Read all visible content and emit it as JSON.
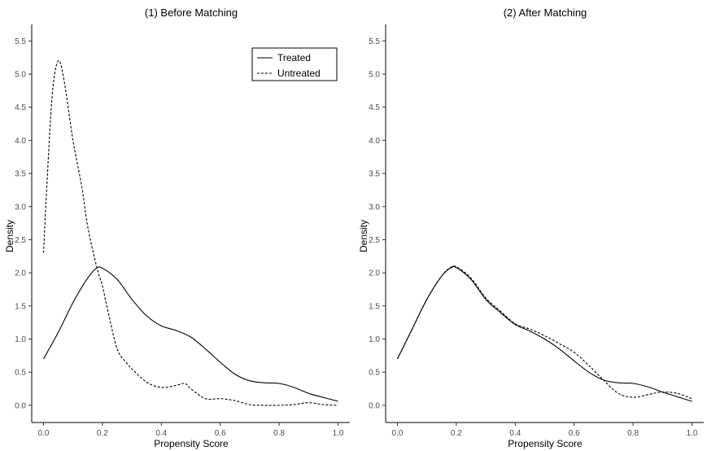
{
  "chart_data": [
    {
      "type": "line",
      "title": "(1) Before Matching",
      "xlabel": "Propensity Score",
      "ylabel": "Density",
      "xlim": [
        -0.04,
        1.04
      ],
      "ylim": [
        -0.26,
        5.75
      ],
      "xticks": [
        "0.0",
        "0.2",
        "0.4",
        "0.6",
        "0.8",
        "1.0"
      ],
      "yticks": [
        "0.0",
        "0.5",
        "1.0",
        "1.5",
        "2.0",
        "2.5",
        "3.0",
        "3.5",
        "4.0",
        "4.5",
        "5.0",
        "5.5"
      ],
      "grid": false,
      "legend": {
        "position": "top-right",
        "entries": [
          {
            "name": "Treated",
            "style": "solid"
          },
          {
            "name": "Untreated",
            "style": "dashed"
          }
        ]
      },
      "series": [
        {
          "name": "Treated",
          "style": "solid",
          "color": "#000000",
          "x": [
            0.0,
            0.05,
            0.1,
            0.15,
            0.18,
            0.2,
            0.25,
            0.3,
            0.35,
            0.4,
            0.45,
            0.5,
            0.55,
            0.6,
            0.65,
            0.7,
            0.75,
            0.8,
            0.85,
            0.9,
            0.95,
            1.0
          ],
          "y": [
            0.7,
            1.1,
            1.55,
            1.92,
            2.07,
            2.07,
            1.9,
            1.6,
            1.35,
            1.2,
            1.13,
            1.03,
            0.85,
            0.65,
            0.47,
            0.37,
            0.34,
            0.33,
            0.27,
            0.18,
            0.12,
            0.06
          ]
        },
        {
          "name": "Untreated",
          "style": "dashed",
          "color": "#000000",
          "x": [
            0.0,
            0.01,
            0.03,
            0.05,
            0.07,
            0.1,
            0.13,
            0.15,
            0.18,
            0.2,
            0.22,
            0.25,
            0.28,
            0.3,
            0.35,
            0.4,
            0.45,
            0.48,
            0.5,
            0.55,
            0.6,
            0.65,
            0.7,
            0.75,
            0.8,
            0.85,
            0.9,
            0.95,
            1.0
          ],
          "y": [
            2.3,
            3.2,
            4.7,
            5.2,
            4.9,
            4.0,
            3.3,
            2.7,
            2.1,
            1.8,
            1.4,
            0.85,
            0.65,
            0.55,
            0.35,
            0.27,
            0.3,
            0.33,
            0.25,
            0.1,
            0.1,
            0.07,
            0.01,
            0.0,
            0.0,
            0.01,
            0.04,
            0.01,
            0.0
          ]
        }
      ]
    },
    {
      "type": "line",
      "title": "(2) After Matching",
      "xlabel": "Propensity Score",
      "ylabel": "Density",
      "xlim": [
        -0.04,
        1.04
      ],
      "ylim": [
        -0.26,
        5.75
      ],
      "xticks": [
        "0.0",
        "0.2",
        "0.4",
        "0.6",
        "0.8",
        "1.0"
      ],
      "yticks": [
        "0.0",
        "0.5",
        "1.0",
        "1.5",
        "2.0",
        "2.5",
        "3.0",
        "3.5",
        "4.0",
        "4.5",
        "5.0",
        "5.5"
      ],
      "grid": false,
      "series": [
        {
          "name": "Treated",
          "style": "solid",
          "color": "#000000",
          "x": [
            0.0,
            0.05,
            0.1,
            0.15,
            0.18,
            0.2,
            0.25,
            0.3,
            0.35,
            0.4,
            0.45,
            0.5,
            0.55,
            0.6,
            0.65,
            0.7,
            0.75,
            0.8,
            0.85,
            0.9,
            0.95,
            1.0
          ],
          "y": [
            0.7,
            1.15,
            1.6,
            1.95,
            2.07,
            2.08,
            1.9,
            1.6,
            1.4,
            1.22,
            1.12,
            1.0,
            0.85,
            0.67,
            0.5,
            0.38,
            0.34,
            0.33,
            0.28,
            0.2,
            0.13,
            0.06
          ]
        },
        {
          "name": "Untreated",
          "style": "dashed",
          "color": "#000000",
          "x": [
            0.0,
            0.05,
            0.1,
            0.15,
            0.18,
            0.2,
            0.25,
            0.3,
            0.35,
            0.4,
            0.45,
            0.5,
            0.55,
            0.6,
            0.65,
            0.7,
            0.75,
            0.8,
            0.85,
            0.9,
            0.95,
            1.0
          ],
          "y": [
            0.7,
            1.15,
            1.6,
            1.95,
            2.08,
            2.09,
            1.92,
            1.62,
            1.42,
            1.23,
            1.15,
            1.05,
            0.93,
            0.8,
            0.6,
            0.38,
            0.18,
            0.12,
            0.16,
            0.2,
            0.18,
            0.1
          ]
        }
      ]
    }
  ]
}
